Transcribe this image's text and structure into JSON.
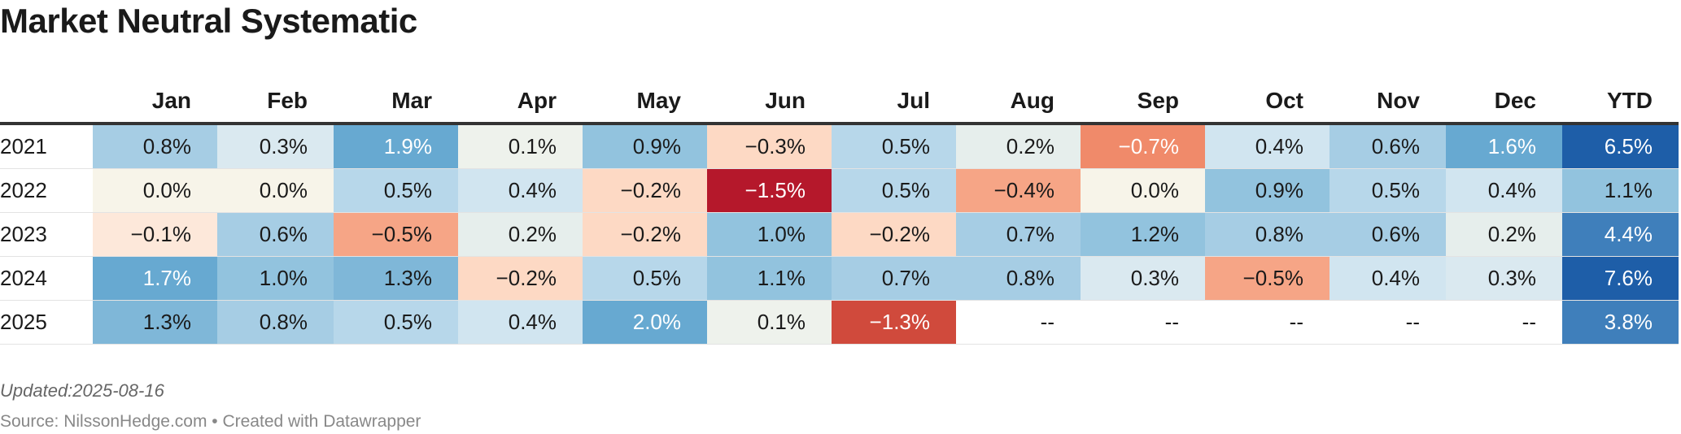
{
  "title": "Market Neutral Systematic",
  "notes": "Updated:2025-08-16",
  "source": "Source: NilssonHedge.com • Created with Datawrapper",
  "colors": {
    "text_dark": "#1a1a1a",
    "text_light": "#ffffff",
    "empty": "#ffffff",
    "scale_negative": [
      "#f6f3ea",
      "#fde0cf",
      "#f8a988",
      "#f08a6a",
      "#d04a3c",
      "#b5182b"
    ],
    "scale_positive": [
      "#f6f3ea",
      "#ecf1ec",
      "#d6e7f1",
      "#b7d7ea",
      "#92c3de",
      "#67a9d1",
      "#3f7fbb",
      "#1e5ea8"
    ]
  },
  "chart_data": {
    "type": "table",
    "title": "Market Neutral Systematic",
    "row_header": "",
    "columns": [
      "Jan",
      "Feb",
      "Mar",
      "Apr",
      "May",
      "Jun",
      "Jul",
      "Aug",
      "Sep",
      "Oct",
      "Nov",
      "Dec",
      "YTD"
    ],
    "unit": "%",
    "rows": [
      {
        "label": "2021",
        "values": [
          "0.8%",
          "0.3%",
          "1.9%",
          "0.1%",
          "0.9%",
          "−0.3%",
          "0.5%",
          "0.2%",
          "−0.7%",
          "0.4%",
          "0.6%",
          "1.6%",
          "6.5%"
        ],
        "numeric": [
          0.8,
          0.3,
          1.9,
          0.1,
          0.9,
          -0.3,
          0.5,
          0.2,
          -0.7,
          0.4,
          0.6,
          1.6,
          6.5
        ]
      },
      {
        "label": "2022",
        "values": [
          "0.0%",
          "0.0%",
          "0.5%",
          "0.4%",
          "−0.2%",
          "−1.5%",
          "0.5%",
          "−0.4%",
          "0.0%",
          "0.9%",
          "0.5%",
          "0.4%",
          "1.1%"
        ],
        "numeric": [
          0.0,
          0.0,
          0.5,
          0.4,
          -0.2,
          -1.5,
          0.5,
          -0.4,
          0.0,
          0.9,
          0.5,
          0.4,
          1.1
        ]
      },
      {
        "label": "2023",
        "values": [
          "−0.1%",
          "0.6%",
          "−0.5%",
          "0.2%",
          "−0.2%",
          "1.0%",
          "−0.2%",
          "0.7%",
          "1.2%",
          "0.8%",
          "0.6%",
          "0.2%",
          "4.4%"
        ],
        "numeric": [
          -0.1,
          0.6,
          -0.5,
          0.2,
          -0.2,
          1.0,
          -0.2,
          0.7,
          1.2,
          0.8,
          0.6,
          0.2,
          4.4
        ]
      },
      {
        "label": "2024",
        "values": [
          "1.7%",
          "1.0%",
          "1.3%",
          "−0.2%",
          "0.5%",
          "1.1%",
          "0.7%",
          "0.8%",
          "0.3%",
          "−0.5%",
          "0.4%",
          "0.3%",
          "7.6%"
        ],
        "numeric": [
          1.7,
          1.0,
          1.3,
          -0.2,
          0.5,
          1.1,
          0.7,
          0.8,
          0.3,
          -0.5,
          0.4,
          0.3,
          7.6
        ]
      },
      {
        "label": "2025",
        "values": [
          "1.3%",
          "0.8%",
          "0.5%",
          "0.4%",
          "2.0%",
          "0.1%",
          "−1.3%",
          "--",
          "--",
          "--",
          "--",
          "--",
          "3.8%"
        ],
        "numeric": [
          1.3,
          0.8,
          0.5,
          0.4,
          2.0,
          0.1,
          -1.3,
          null,
          null,
          null,
          null,
          null,
          3.8
        ]
      }
    ]
  }
}
